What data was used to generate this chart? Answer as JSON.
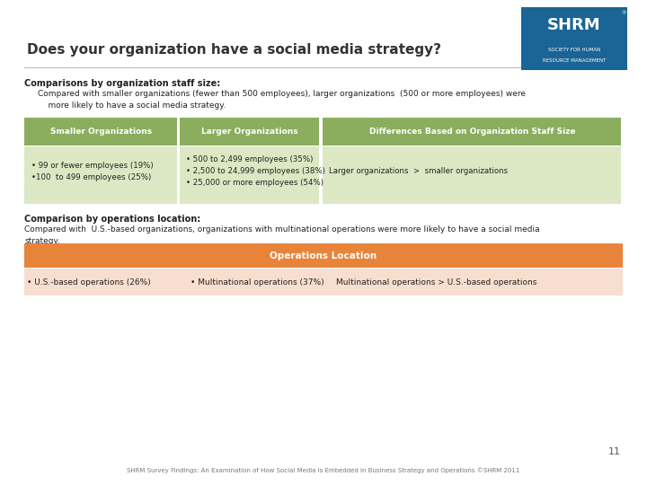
{
  "title": "Does your organization have a social media strategy?",
  "background_color": "#ffffff",
  "title_color": "#333333",
  "title_fontsize": 11,
  "section1_bold": "Comparisons by organization staff size:",
  "section1_text": "Compared with smaller organizations (fewer than 500 employees), larger organizations  (500 or more employees) were\n    more likely to have a social media strategy.",
  "table1_header": [
    "Smaller Organizations",
    "Larger Organizations",
    "Differences Based on Organization Staff Size"
  ],
  "table1_header_bg": "#8aad5e",
  "table1_header_color": "#ffffff",
  "table1_row_bg": "#dce8c4",
  "table1_row": [
    "• 99 or fewer employees (19%)\n•100  to 499 employees (25%)",
    "• 500 to 2,499 employees (35%)\n• 2,500 to 24,999 employees (38%)\n• 25,000 or more employees (54%)",
    "Larger organizations  >  smaller organizations"
  ],
  "section2_bold": "Comparison by operations location:",
  "section2_text": "Compared with  U.S.-based organizations, organizations with multinational operations were more likely to have a social media\nstrategy.",
  "table2_header": "Operations Location",
  "table2_header_bg": "#e8843a",
  "table2_header_color": "#ffffff",
  "table2_row_bg": "#f7dece",
  "table2_row": [
    "• U.S.-based operations (26%)",
    "• Multinational operations (37%)",
    "Multinational operations > U.S.-based operations"
  ],
  "page_number": "11",
  "footer": "SHRM Survey Findings: An Examination of How Social Media Is Embedded in Business Strategy and Operations ©SHRM 2011",
  "separator_color": "#bbbbbb",
  "logo_bg": "#1a6496",
  "logo_text": "SHRM",
  "logo_sub1": "SOCIETY FOR HUMAN",
  "logo_sub2": "RESOURCE MANAGEMENT"
}
